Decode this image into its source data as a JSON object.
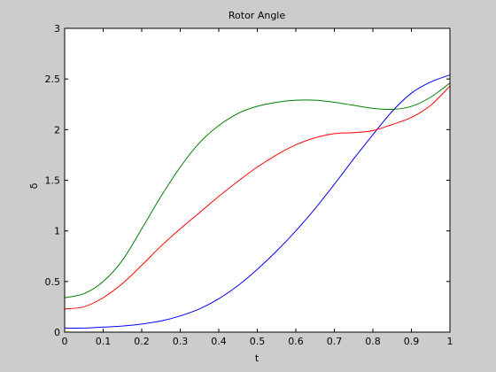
{
  "chart_data": {
    "type": "line",
    "title": "Rotor Angle",
    "xlabel": "t",
    "ylabel": "δ",
    "xlim": [
      0,
      1
    ],
    "ylim": [
      0,
      3
    ],
    "xticks": [
      "0",
      "0.1",
      "0.2",
      "0.3",
      "0.4",
      "0.5",
      "0.6",
      "0.7",
      "0.8",
      "0.9",
      "1"
    ],
    "yticks": [
      "0",
      "0.5",
      "1",
      "1.5",
      "2",
      "2.5",
      "3"
    ],
    "grid": false,
    "legend": "none",
    "x": [
      0,
      0.05,
      0.1,
      0.15,
      0.2,
      0.25,
      0.3,
      0.35,
      0.4,
      0.45,
      0.5,
      0.55,
      0.6,
      0.65,
      0.7,
      0.75,
      0.8,
      0.85,
      0.9,
      0.95,
      1.0
    ],
    "series": [
      {
        "color": "#0000ff",
        "values": [
          0.04,
          0.04,
          0.05,
          0.06,
          0.08,
          0.11,
          0.16,
          0.23,
          0.33,
          0.46,
          0.62,
          0.8,
          1.0,
          1.22,
          1.46,
          1.71,
          1.95,
          2.18,
          2.36,
          2.47,
          2.54
        ]
      },
      {
        "color": "#ff0000",
        "values": [
          0.23,
          0.25,
          0.34,
          0.48,
          0.66,
          0.85,
          1.02,
          1.18,
          1.34,
          1.49,
          1.63,
          1.75,
          1.85,
          1.92,
          1.96,
          1.97,
          1.99,
          2.05,
          2.12,
          2.24,
          2.43
        ]
      },
      {
        "color": "#007f00",
        "values": [
          0.34,
          0.38,
          0.5,
          0.71,
          1.02,
          1.34,
          1.63,
          1.87,
          2.04,
          2.16,
          2.23,
          2.27,
          2.29,
          2.29,
          2.27,
          2.24,
          2.21,
          2.2,
          2.23,
          2.32,
          2.46
        ]
      }
    ]
  }
}
